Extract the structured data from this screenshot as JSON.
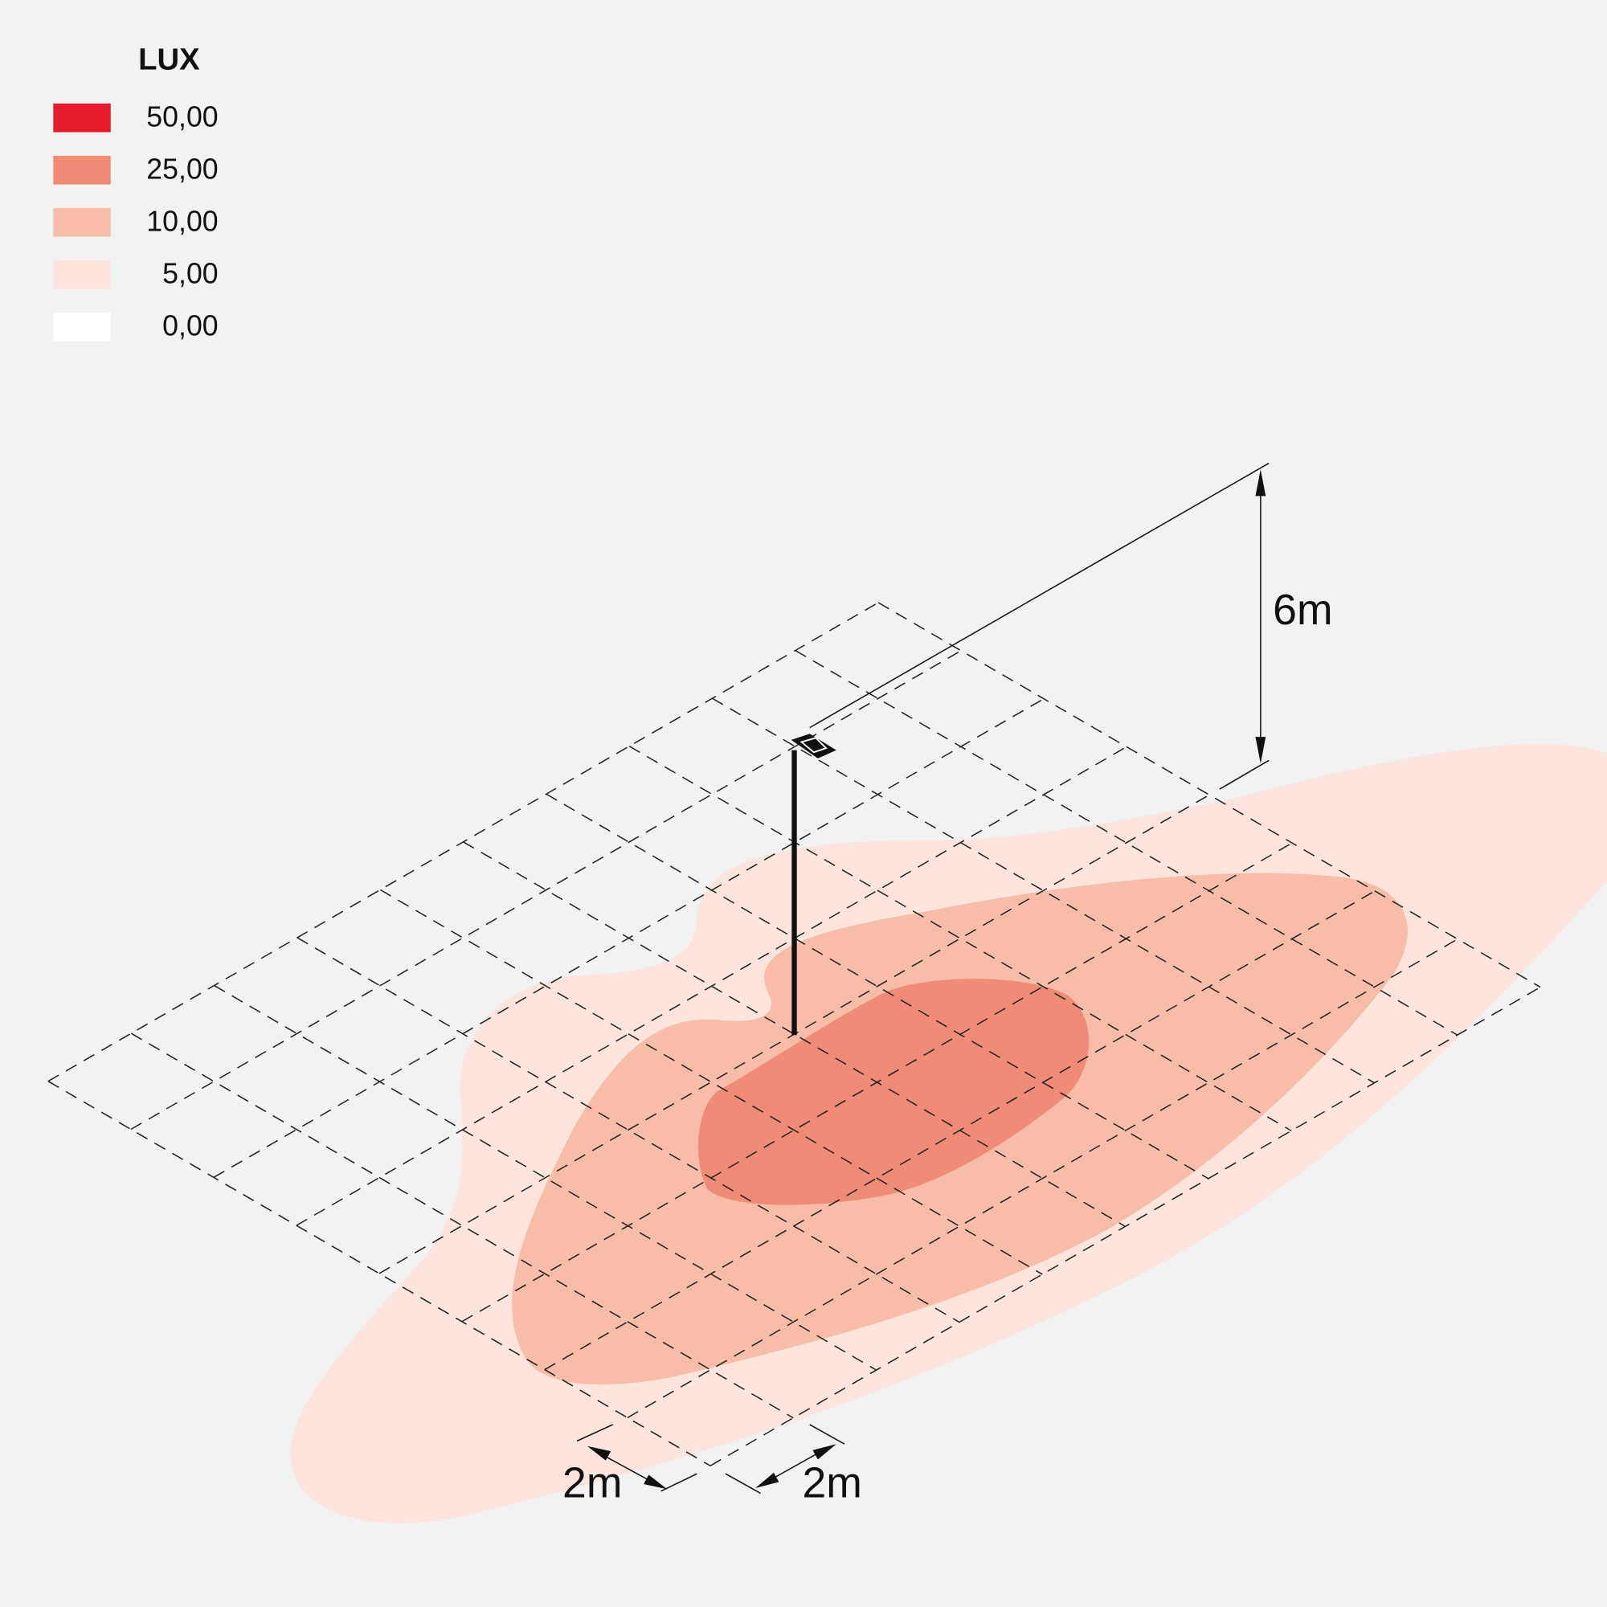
{
  "legend": {
    "title": "LUX",
    "items": [
      {
        "label": "50,00",
        "color": "#e31b2b"
      },
      {
        "label": "25,00",
        "color": "#f08c76"
      },
      {
        "label": "10,00",
        "color": "#f8bda8"
      },
      {
        "label": "5,00",
        "color": "#fde5dd"
      },
      {
        "label": "0,00",
        "color": "#ffffff"
      }
    ]
  },
  "dimensions": {
    "height": "6m",
    "grid_x": "2m",
    "grid_y": "2m"
  }
}
